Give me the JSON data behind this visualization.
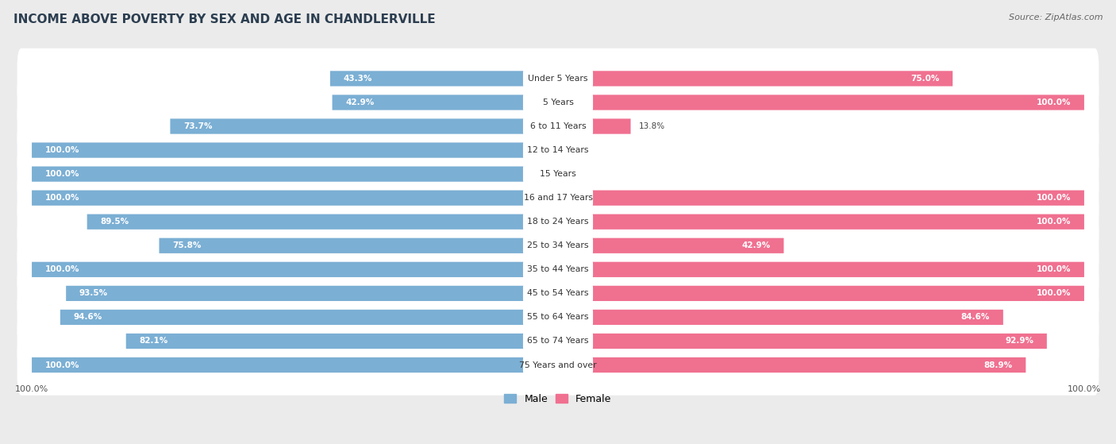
{
  "title": "INCOME ABOVE POVERTY BY SEX AND AGE IN CHANDLERVILLE",
  "source": "Source: ZipAtlas.com",
  "categories": [
    "Under 5 Years",
    "5 Years",
    "6 to 11 Years",
    "12 to 14 Years",
    "15 Years",
    "16 and 17 Years",
    "18 to 24 Years",
    "25 to 34 Years",
    "35 to 44 Years",
    "45 to 54 Years",
    "55 to 64 Years",
    "65 to 74 Years",
    "75 Years and over"
  ],
  "male": [
    43.3,
    42.9,
    73.7,
    100.0,
    100.0,
    100.0,
    89.5,
    75.8,
    100.0,
    93.5,
    94.6,
    82.1,
    100.0
  ],
  "female": [
    75.0,
    100.0,
    13.8,
    0.0,
    0.0,
    100.0,
    100.0,
    42.9,
    100.0,
    100.0,
    84.6,
    92.9,
    88.9
  ],
  "male_color": "#7bafd4",
  "female_color": "#f07090",
  "bg_color": "#ebebeb",
  "bar_bg_color": "#ffffff",
  "male_label": "Male",
  "female_label": "Female",
  "max_val": 100.0
}
